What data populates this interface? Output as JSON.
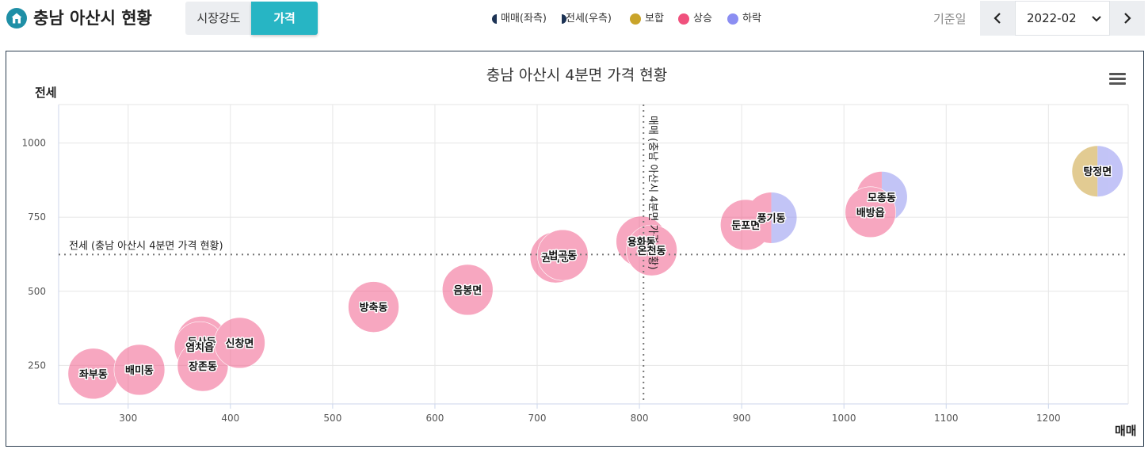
{
  "header": {
    "title": "충남 아산시 현황",
    "tabs": [
      {
        "label": "시장강도",
        "active": false
      },
      {
        "label": "가격",
        "active": true
      }
    ],
    "date_label": "기준일",
    "date_value": "2022-02"
  },
  "legend": {
    "items": [
      {
        "label": "매매(좌측)",
        "icon": "half-left-dot-icon",
        "color": "#1d3355"
      },
      {
        "label": "전세(우측)",
        "icon": "half-right-dot-icon",
        "color": "#1d3355"
      },
      {
        "label": "보합",
        "icon": "dot-icon",
        "color": "#c9a42a"
      },
      {
        "label": "상승",
        "icon": "dot-icon",
        "color": "#f0517d"
      },
      {
        "label": "하락",
        "icon": "dot-icon",
        "color": "#8b8ef2"
      }
    ]
  },
  "colors": {
    "rise": "#f2608d",
    "fall": "#9194f0",
    "flat": "#cba23a",
    "accent": "#27b5c4"
  },
  "chart_data": {
    "type": "scatter",
    "title": "충남 아산시 4분면 가격 현황",
    "xlabel": "매매",
    "ylabel": "전세",
    "xlim": [
      232,
      1278
    ],
    "ylim": [
      120,
      1130
    ],
    "xticks": [
      300,
      400,
      500,
      600,
      700,
      800,
      900,
      1000,
      1100,
      1200
    ],
    "yticks": [
      250,
      500,
      750,
      1000
    ],
    "grid": true,
    "reference_lines": {
      "x": {
        "value": 804,
        "label": "매매 (충남 아산시 4분면 가격 현황)"
      },
      "y": {
        "value": 624,
        "label": "전세 (충남 아산시 4분면 가격 현황)"
      }
    },
    "points": [
      {
        "name": "좌부동",
        "x": 266,
        "y": 222,
        "sale": "rise",
        "jeonse": "rise"
      },
      {
        "name": "배미동",
        "x": 311,
        "y": 235,
        "sale": "rise",
        "jeonse": "rise"
      },
      {
        "name": "득산동",
        "x": 372,
        "y": 330,
        "sale": "rise",
        "jeonse": "rise"
      },
      {
        "name": "염치읍",
        "x": 370,
        "y": 312,
        "sale": "rise",
        "jeonse": "rise"
      },
      {
        "name": "장존동",
        "x": 373,
        "y": 248,
        "sale": "rise",
        "jeonse": "rise"
      },
      {
        "name": "신창면",
        "x": 409,
        "y": 326,
        "sale": "rise",
        "jeonse": "rise"
      },
      {
        "name": "방축동",
        "x": 540,
        "y": 447,
        "sale": "rise",
        "jeonse": "rise"
      },
      {
        "name": "음봉면",
        "x": 632,
        "y": 505,
        "sale": "rise",
        "jeonse": "rise"
      },
      {
        "name": "권곡동",
        "x": 718,
        "y": 614,
        "sale": "rise",
        "jeonse": "rise"
      },
      {
        "name": "법곡동",
        "x": 725,
        "y": 622,
        "sale": "rise",
        "jeonse": "rise"
      },
      {
        "name": "용화동",
        "x": 802,
        "y": 668,
        "sale": "rise",
        "jeonse": "rise"
      },
      {
        "name": "온천동",
        "x": 812,
        "y": 638,
        "sale": "rise",
        "jeonse": "rise"
      },
      {
        "name": "둔포면",
        "x": 904,
        "y": 724,
        "sale": "rise",
        "jeonse": "rise"
      },
      {
        "name": "풍기동",
        "x": 929,
        "y": 748,
        "sale": "rise",
        "jeonse": "fall"
      },
      {
        "name": "모종동",
        "x": 1037,
        "y": 818,
        "sale": "rise",
        "jeonse": "fall"
      },
      {
        "name": "배방읍",
        "x": 1026,
        "y": 767,
        "sale": "rise",
        "jeonse": "rise"
      },
      {
        "name": "탕정면",
        "x": 1248,
        "y": 905,
        "sale": "flat",
        "jeonse": "fall"
      }
    ]
  }
}
